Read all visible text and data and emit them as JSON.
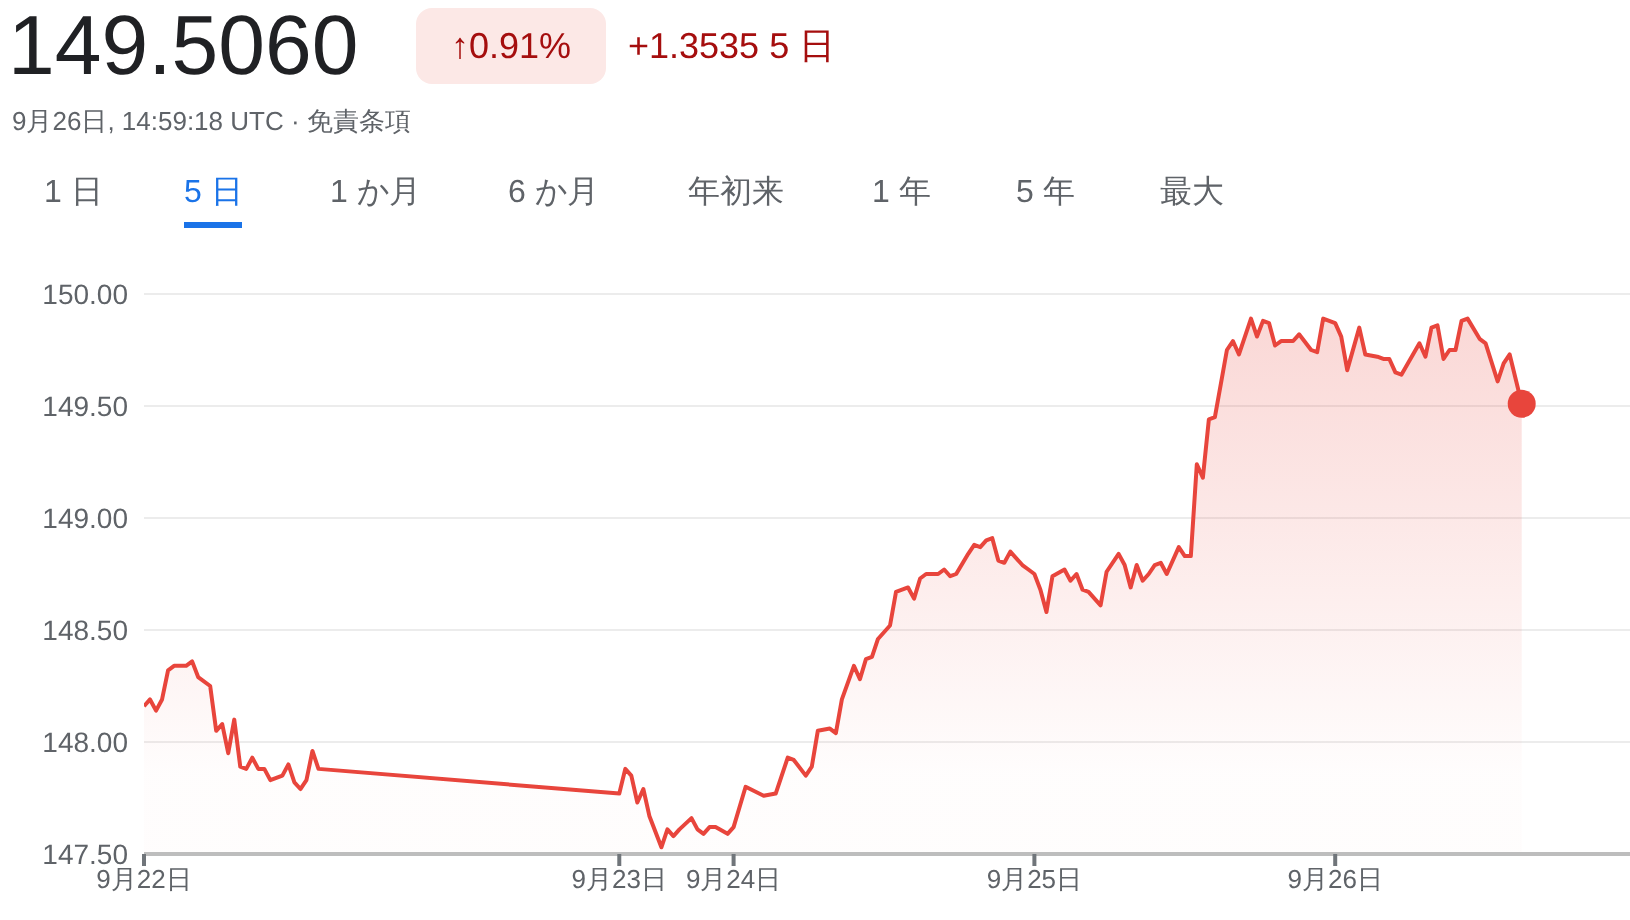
{
  "chart_data": {
    "type": "area",
    "title": "149.5060",
    "subtitle": "9月26日, 14:59:18 UTC · 免責条項",
    "annotations": [
      "↑0.91%",
      "+1.3535 5 日",
      "1 日",
      "5 日",
      "1 か月",
      "6 か月",
      "年初来",
      "1 年",
      "5 年",
      "最大"
    ],
    "categories": [
      "9月22日",
      null,
      null,
      null,
      null,
      null,
      null,
      null,
      null,
      null,
      null,
      null,
      null,
      null,
      null,
      null,
      null,
      null,
      null,
      null,
      null,
      null,
      null,
      null,
      null,
      null,
      null,
      null,
      null,
      null,
      null,
      null,
      null,
      null,
      null,
      null,
      null,
      null,
      null,
      null,
      null,
      null,
      null,
      null,
      null,
      null,
      null,
      null,
      null,
      null,
      null,
      null,
      null,
      null,
      null,
      null,
      null,
      null,
      null,
      null,
      null,
      null,
      null,
      null,
      null,
      null,
      null,
      null,
      null,
      null,
      null,
      null,
      null,
      null,
      null,
      null,
      null,
      null,
      null,
      "9月23日",
      null,
      null,
      null,
      null,
      null,
      null,
      null,
      null,
      null,
      null,
      null,
      null,
      null,
      null,
      null,
      null,
      null,
      null,
      "9月24日",
      null,
      null,
      null,
      null,
      null,
      null,
      null,
      null,
      null,
      null,
      null,
      null,
      null,
      null,
      null,
      null,
      null,
      null,
      null,
      null,
      null,
      null,
      null,
      null,
      null,
      null,
      null,
      null,
      null,
      null,
      null,
      null,
      null,
      null,
      null,
      null,
      null,
      null,
      null,
      null,
      null,
      null,
      null,
      null,
      null,
      null,
      null,
      null,
      null,
      "9月25日",
      null,
      null,
      null,
      null,
      null,
      null,
      null,
      null,
      null,
      null,
      null,
      null,
      null,
      null,
      null,
      null,
      null,
      null,
      null,
      null,
      null,
      null,
      null,
      null,
      null,
      null,
      null,
      null,
      null,
      null,
      null,
      null,
      null,
      null,
      null,
      null,
      null,
      null,
      null,
      null,
      null,
      null,
      null,
      null,
      null,
      null,
      null,
      null,
      null,
      "9月26日",
      null,
      null,
      null,
      null,
      null,
      null,
      null,
      null,
      null,
      null,
      null,
      null,
      null,
      null,
      null,
      null,
      null,
      null,
      null,
      null,
      null,
      null,
      null,
      null,
      null,
      null,
      null,
      null,
      null,
      null,
      null,
      null,
      null,
      null,
      null,
      null,
      null,
      null,
      null,
      null,
      null,
      null,
      null,
      null,
      null,
      null,
      null,
      null,
      null
    ],
    "ylim": [
      147.5,
      150
    ],
    "yticks": [
      {
        "value": 147.5,
        "label": "147.50"
      },
      {
        "value": 148,
        "label": "148.00"
      },
      {
        "value": 148.5,
        "label": "148.50"
      },
      {
        "value": 149,
        "label": "149.00"
      },
      {
        "value": 149.5,
        "label": "149.50"
      },
      {
        "value": 150,
        "label": "150.00"
      }
    ],
    "grid": "y",
    "series": [
      {
        "type": "area",
        "color": "#e8453c",
        "values": [
          148.16,
          148.19,
          148.14,
          148.19,
          148.32,
          148.34,
          null,
          148.34,
          148.36,
          148.29,
          null,
          148.25,
          148.05,
          148.08,
          147.95,
          148.1,
          147.89,
          147.88,
          147.93,
          147.88,
          147.88,
          147.83,
          null,
          147.85,
          147.9,
          147.82,
          147.79,
          147.83,
          147.96,
          147.88,
          null,
          null,
          null,
          null,
          null,
          null,
          null,
          null,
          null,
          null,
          null,
          null,
          null,
          null,
          null,
          null,
          null,
          null,
          null,
          null,
          null,
          null,
          null,
          null,
          null,
          null,
          null,
          null,
          null,
          null,
          null,
          null,
          null,
          null,
          null,
          null,
          null,
          null,
          null,
          null,
          null,
          null,
          null,
          null,
          null,
          null,
          null,
          null,
          null,
          147.77,
          147.88,
          147.85,
          147.73,
          147.79,
          147.67,
          null,
          147.53,
          147.61,
          147.58,
          147.61,
          null,
          147.66,
          147.61,
          147.59,
          147.62,
          147.62,
          null,
          147.59,
          147.62,
          null,
          147.8,
          null,
          null,
          147.76,
          null,
          147.77,
          null,
          147.93,
          147.92,
          null,
          147.85,
          147.89,
          148.05,
          null,
          148.06,
          148.04,
          148.19,
          null,
          148.34,
          148.28,
          148.37,
          148.38,
          148.46,
          null,
          148.52,
          148.67,
          null,
          148.69,
          148.64,
          148.73,
          148.75,
          null,
          148.75,
          148.77,
          148.74,
          148.75,
          null,
          148.84,
          148.88,
          148.87,
          148.9,
          148.91,
          148.81,
          148.8,
          148.85,
          null,
          148.79,
          148.77,
          148.75,
          148.68,
          148.58,
          148.74,
          null,
          148.77,
          148.72,
          148.75,
          148.68,
          148.67,
          null,
          148.61,
          148.76,
          null,
          148.84,
          148.79,
          148.69,
          148.79,
          148.72,
          148.75,
          148.79,
          148.8,
          148.75,
          null,
          148.87,
          148.83,
          148.83,
          149.24,
          149.18,
          149.44,
          149.45,
          149.6,
          149.75,
          149.79,
          149.73,
          null,
          149.89,
          149.81,
          149.88,
          149.87,
          149.77,
          149.79,
          null,
          149.79,
          149.82,
          null,
          149.75,
          149.74,
          149.89,
          null,
          149.87,
          149.81,
          149.66,
          null,
          149.85,
          149.73,
          null,
          149.72,
          149.71,
          149.71,
          149.65,
          149.64,
          null,
          null,
          149.78,
          149.72,
          149.85,
          149.86,
          149.71,
          149.75,
          149.75,
          149.88,
          149.89,
          null,
          149.8,
          149.78,
          null,
          149.61,
          149.69,
          149.73,
          null,
          149.51,
          null,
          null,
          null,
          null,
          null,
          null,
          null,
          null,
          null,
          null,
          null,
          null,
          null,
          null,
          null,
          null,
          null,
          null
        ]
      },
      {
        "type": "scatter",
        "color": "#e8453c",
        "values": [
          null,
          null,
          null,
          null,
          null,
          null,
          null,
          null,
          null,
          null,
          null,
          null,
          null,
          null,
          null,
          null,
          null,
          null,
          null,
          null,
          null,
          null,
          null,
          null,
          null,
          null,
          null,
          null,
          null,
          null,
          null,
          null,
          null,
          null,
          null,
          null,
          null,
          null,
          null,
          null,
          null,
          null,
          null,
          null,
          null,
          null,
          null,
          null,
          null,
          null,
          null,
          null,
          null,
          null,
          null,
          null,
          null,
          null,
          null,
          null,
          null,
          null,
          null,
          null,
          null,
          null,
          null,
          null,
          null,
          null,
          null,
          null,
          null,
          null,
          null,
          null,
          null,
          null,
          null,
          null,
          null,
          null,
          null,
          null,
          null,
          null,
          null,
          null,
          null,
          null,
          null,
          null,
          null,
          null,
          null,
          null,
          null,
          null,
          null,
          null,
          null,
          null,
          null,
          null,
          null,
          null,
          null,
          null,
          null,
          null,
          null,
          null,
          null,
          null,
          null,
          null,
          null,
          null,
          null,
          null,
          null,
          null,
          null,
          null,
          null,
          null,
          null,
          null,
          null,
          null,
          null,
          null,
          null,
          null,
          null,
          null,
          null,
          null,
          null,
          null,
          null,
          null,
          null,
          null,
          null,
          null,
          null,
          null,
          null,
          null,
          null,
          null,
          null,
          null,
          null,
          null,
          null,
          null,
          null,
          null,
          null,
          null,
          null,
          null,
          null,
          null,
          null,
          null,
          null,
          null,
          null,
          null,
          null,
          null,
          null,
          null,
          null,
          null,
          null,
          null,
          null,
          null,
          null,
          null,
          null,
          null,
          null,
          null,
          null,
          null,
          null,
          null,
          null,
          null,
          null,
          null,
          null,
          null,
          null,
          null,
          null,
          null,
          null,
          null,
          null,
          null,
          null,
          null,
          null,
          null,
          null,
          null,
          null,
          null,
          null,
          null,
          null,
          null,
          null,
          null,
          null,
          null,
          null,
          null,
          null,
          null,
          null,
          null,
          null,
          149.51,
          null,
          null,
          null,
          null,
          null,
          null,
          null,
          null,
          null,
          null,
          null,
          null,
          null,
          null,
          null,
          null,
          null,
          null
        ]
      }
    ]
  }
}
